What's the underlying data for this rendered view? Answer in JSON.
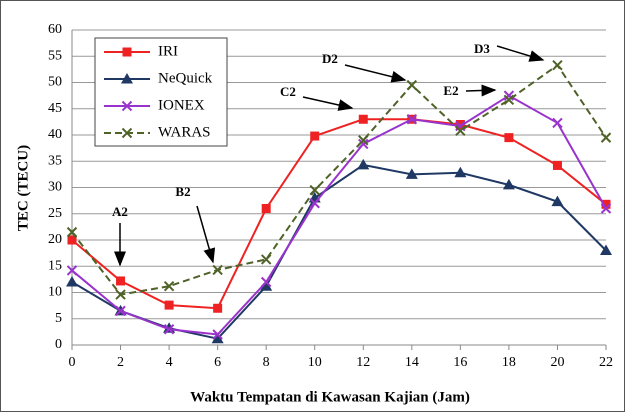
{
  "chart_data": {
    "type": "line",
    "x": [
      0,
      2,
      4,
      6,
      8,
      10,
      12,
      14,
      16,
      18,
      20,
      22
    ],
    "xlim": [
      0,
      22
    ],
    "xticks": [
      0,
      2,
      4,
      6,
      8,
      10,
      12,
      14,
      16,
      18,
      20,
      22
    ],
    "ylim": [
      0,
      60
    ],
    "yticks": [
      0,
      5,
      10,
      15,
      20,
      25,
      30,
      35,
      40,
      45,
      50,
      55,
      60
    ],
    "grid": true,
    "legend": "upper left",
    "xlabel": "Waktu Tempatan di Kawasan Kajian (Jam)",
    "ylabel": "TEC (TECU)",
    "annotations": [
      "A2",
      "B2",
      "C2",
      "D2",
      "E2",
      "D3"
    ],
    "series": [
      {
        "name": "IRI",
        "color": "#ee2222",
        "marker": "square",
        "dashed": false,
        "values": [
          20,
          12.2,
          7.6,
          7,
          26,
          39.8,
          43,
          43,
          42,
          39.5,
          34.2,
          26.8
        ]
      },
      {
        "name": "NeQuick",
        "color": "#1f3864",
        "marker": "triangle",
        "dashed": false,
        "values": [
          12,
          6.5,
          3.2,
          1.2,
          11.2,
          28,
          34.3,
          32.5,
          32.8,
          30.5,
          27.3,
          18
        ]
      },
      {
        "name": "IONEX",
        "color": "#9933cc",
        "marker": "x",
        "dashed": false,
        "values": [
          14.2,
          6.5,
          3,
          2,
          12,
          27,
          38.3,
          43,
          41.7,
          47.5,
          42.3,
          26
        ]
      },
      {
        "name": "WARAS",
        "color": "#4f6228",
        "marker": "x",
        "dashed": true,
        "values": [
          21.5,
          9.6,
          11.2,
          14.3,
          16.3,
          29.5,
          39,
          49.5,
          40.8,
          46.7,
          53.3,
          39.5
        ]
      }
    ]
  }
}
